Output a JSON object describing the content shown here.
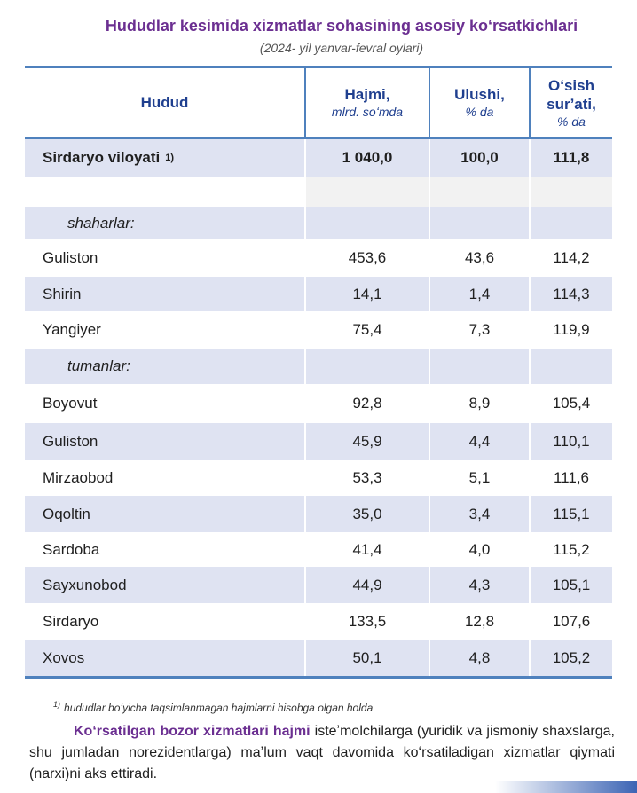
{
  "title": "Hududlar kesimida xizmatlar sohasining asosiy koʻrsatkichlari",
  "subtitle": "(2024- yil yanvar-fevral oylari)",
  "header": {
    "col0": "Hudud",
    "col1_main": "Hajmi,",
    "col1_sub": "mlrd. soʻmda",
    "col2_main": "Ulushi,",
    "col2_sub": "% da",
    "col3_main1": "Oʻsish",
    "col3_main2": "surʼati,",
    "col3_sub": "% da"
  },
  "total_row": {
    "name": "Sirdaryo viloyati",
    "sup": "1)",
    "volume": "1 040,0",
    "share": "100,0",
    "growth": "111,8"
  },
  "group_cities": "shaharlar:",
  "cities": [
    {
      "name": "Guliston",
      "volume": "453,6",
      "share": "43,6",
      "growth": "114,2"
    },
    {
      "name": "Shirin",
      "volume": "14,1",
      "share": "1,4",
      "growth": "114,3"
    },
    {
      "name": "Yangiyer",
      "volume": "75,4",
      "share": "7,3",
      "growth": "119,9"
    }
  ],
  "group_districts": "tumanlar:",
  "districts": [
    {
      "name": "Boyovut",
      "volume": "92,8",
      "share": "8,9",
      "growth": "105,4"
    },
    {
      "name": "Guliston",
      "volume": "45,9",
      "share": "4,4",
      "growth": "110,1"
    },
    {
      "name": "Mirzaobod",
      "volume": "53,3",
      "share": "5,1",
      "growth": "111,6"
    },
    {
      "name": "Oqoltin",
      "volume": "35,0",
      "share": "3,4",
      "growth": "115,1"
    },
    {
      "name": "Sardoba",
      "volume": "41,4",
      "share": "4,0",
      "growth": "115,2"
    },
    {
      "name": "Sayxunobod",
      "volume": "44,9",
      "share": "4,3",
      "growth": "105,1"
    },
    {
      "name": "Sirdaryo",
      "volume": "133,5",
      "share": "12,8",
      "growth": "107,6"
    },
    {
      "name": "Xovos",
      "volume": "50,1",
      "share": "4,8",
      "growth": "105,2"
    }
  ],
  "footnote": {
    "sup": "1)",
    "text": "hududlar  boʻyicha taqsimlanmagan hajmlarni hisobga olgan holda"
  },
  "paragraph": {
    "emphasis": "Koʻrsatilgan bozor xizmatlari hajmi",
    "text": " isteʼmolchilarga (yuridik va jismoniy shaxslarga, shu jumladan norezidentlarga) maʼlum vaqt davomida koʻrsatiladigan xizmatlar qiymati (narxi)ni aks ettiradi."
  }
}
